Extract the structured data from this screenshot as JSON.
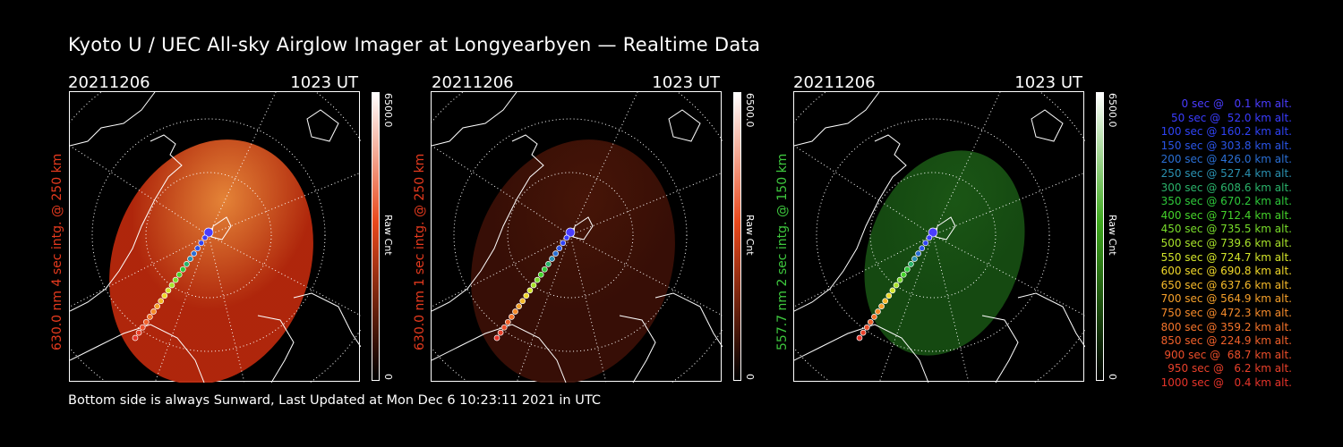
{
  "title": "Kyoto U / UEC All-sky Airglow Imager at Longyearbyen — Realtime Data",
  "footer": "Bottom side is always Sunward, Last Updated at Mon Dec  6 10:23:11 2021 in UTC",
  "panels": [
    {
      "date": "20211206",
      "time": "1023 UT",
      "side_label": "630.0 nm 4 sec intg. @ 250 km",
      "label_color": "#e63a1e",
      "cb_max": "6500.0",
      "cb_min": "0",
      "cb_title": "Raw Cnt",
      "cb_top": "#ffffff",
      "cb_mid": "#e8481c",
      "cb_bottom": "#000000"
    },
    {
      "date": "20211206",
      "time": "1023 UT",
      "side_label": "630.0 nm 1 sec intg. @ 250 km",
      "label_color": "#e63a1e",
      "cb_max": "6500.0",
      "cb_min": "0",
      "cb_title": "Raw Cnt",
      "cb_top": "#ffffff",
      "cb_mid": "#e8481c",
      "cb_bottom": "#000000"
    },
    {
      "date": "20211206",
      "time": "1023 UT",
      "side_label": "557.7 nm 2 sec intg. @ 150 km",
      "label_color": "#3ec83e",
      "cb_max": "6500.0",
      "cb_min": "0",
      "cb_title": "Raw Cnt",
      "cb_top": "#ffffff",
      "cb_mid": "#3ea81e",
      "cb_bottom": "#000000"
    }
  ],
  "legend": [
    {
      "text": "0 sec @   0.1 km alt.",
      "color": "#4a3cff"
    },
    {
      "text": "50 sec @  52.0 km alt.",
      "color": "#3a3cff"
    },
    {
      "text": "100 sec @ 160.2 km alt.",
      "color": "#2f43f5"
    },
    {
      "text": "150 sec @ 303.8 km alt.",
      "color": "#2a55e8"
    },
    {
      "text": "200 sec @ 426.0 km alt.",
      "color": "#2a6fd4"
    },
    {
      "text": "250 sec @ 527.4 km alt.",
      "color": "#2a90b0"
    },
    {
      "text": "300 sec @ 608.6 km alt.",
      "color": "#2ab26a"
    },
    {
      "text": "350 sec @ 670.2 km alt.",
      "color": "#2ec83a"
    },
    {
      "text": "400 sec @ 712.4 km alt.",
      "color": "#45d22a"
    },
    {
      "text": "450 sec @ 735.5 km alt.",
      "color": "#78dc2a"
    },
    {
      "text": "500 sec @ 739.6 km alt.",
      "color": "#a8e22a"
    },
    {
      "text": "550 sec @ 724.7 km alt.",
      "color": "#d2e42a"
    },
    {
      "text": "600 sec @ 690.8 km alt.",
      "color": "#f0d82a"
    },
    {
      "text": "650 sec @ 637.6 km alt.",
      "color": "#f5b92a"
    },
    {
      "text": "700 sec @ 564.9 km alt.",
      "color": "#f5a02a"
    },
    {
      "text": "750 sec @ 472.3 km alt.",
      "color": "#f58a2a"
    },
    {
      "text": "800 sec @ 359.2 km alt.",
      "color": "#f5742a"
    },
    {
      "text": "850 sec @ 224.9 km alt.",
      "color": "#f0602a"
    },
    {
      "text": "900 sec @  68.7 km alt.",
      "color": "#ec4e2a"
    },
    {
      "text": "950 sec @   6.2 km alt.",
      "color": "#e8402a"
    },
    {
      "text": "1000 sec @   0.4 km alt.",
      "color": "#e6342a"
    }
  ]
}
